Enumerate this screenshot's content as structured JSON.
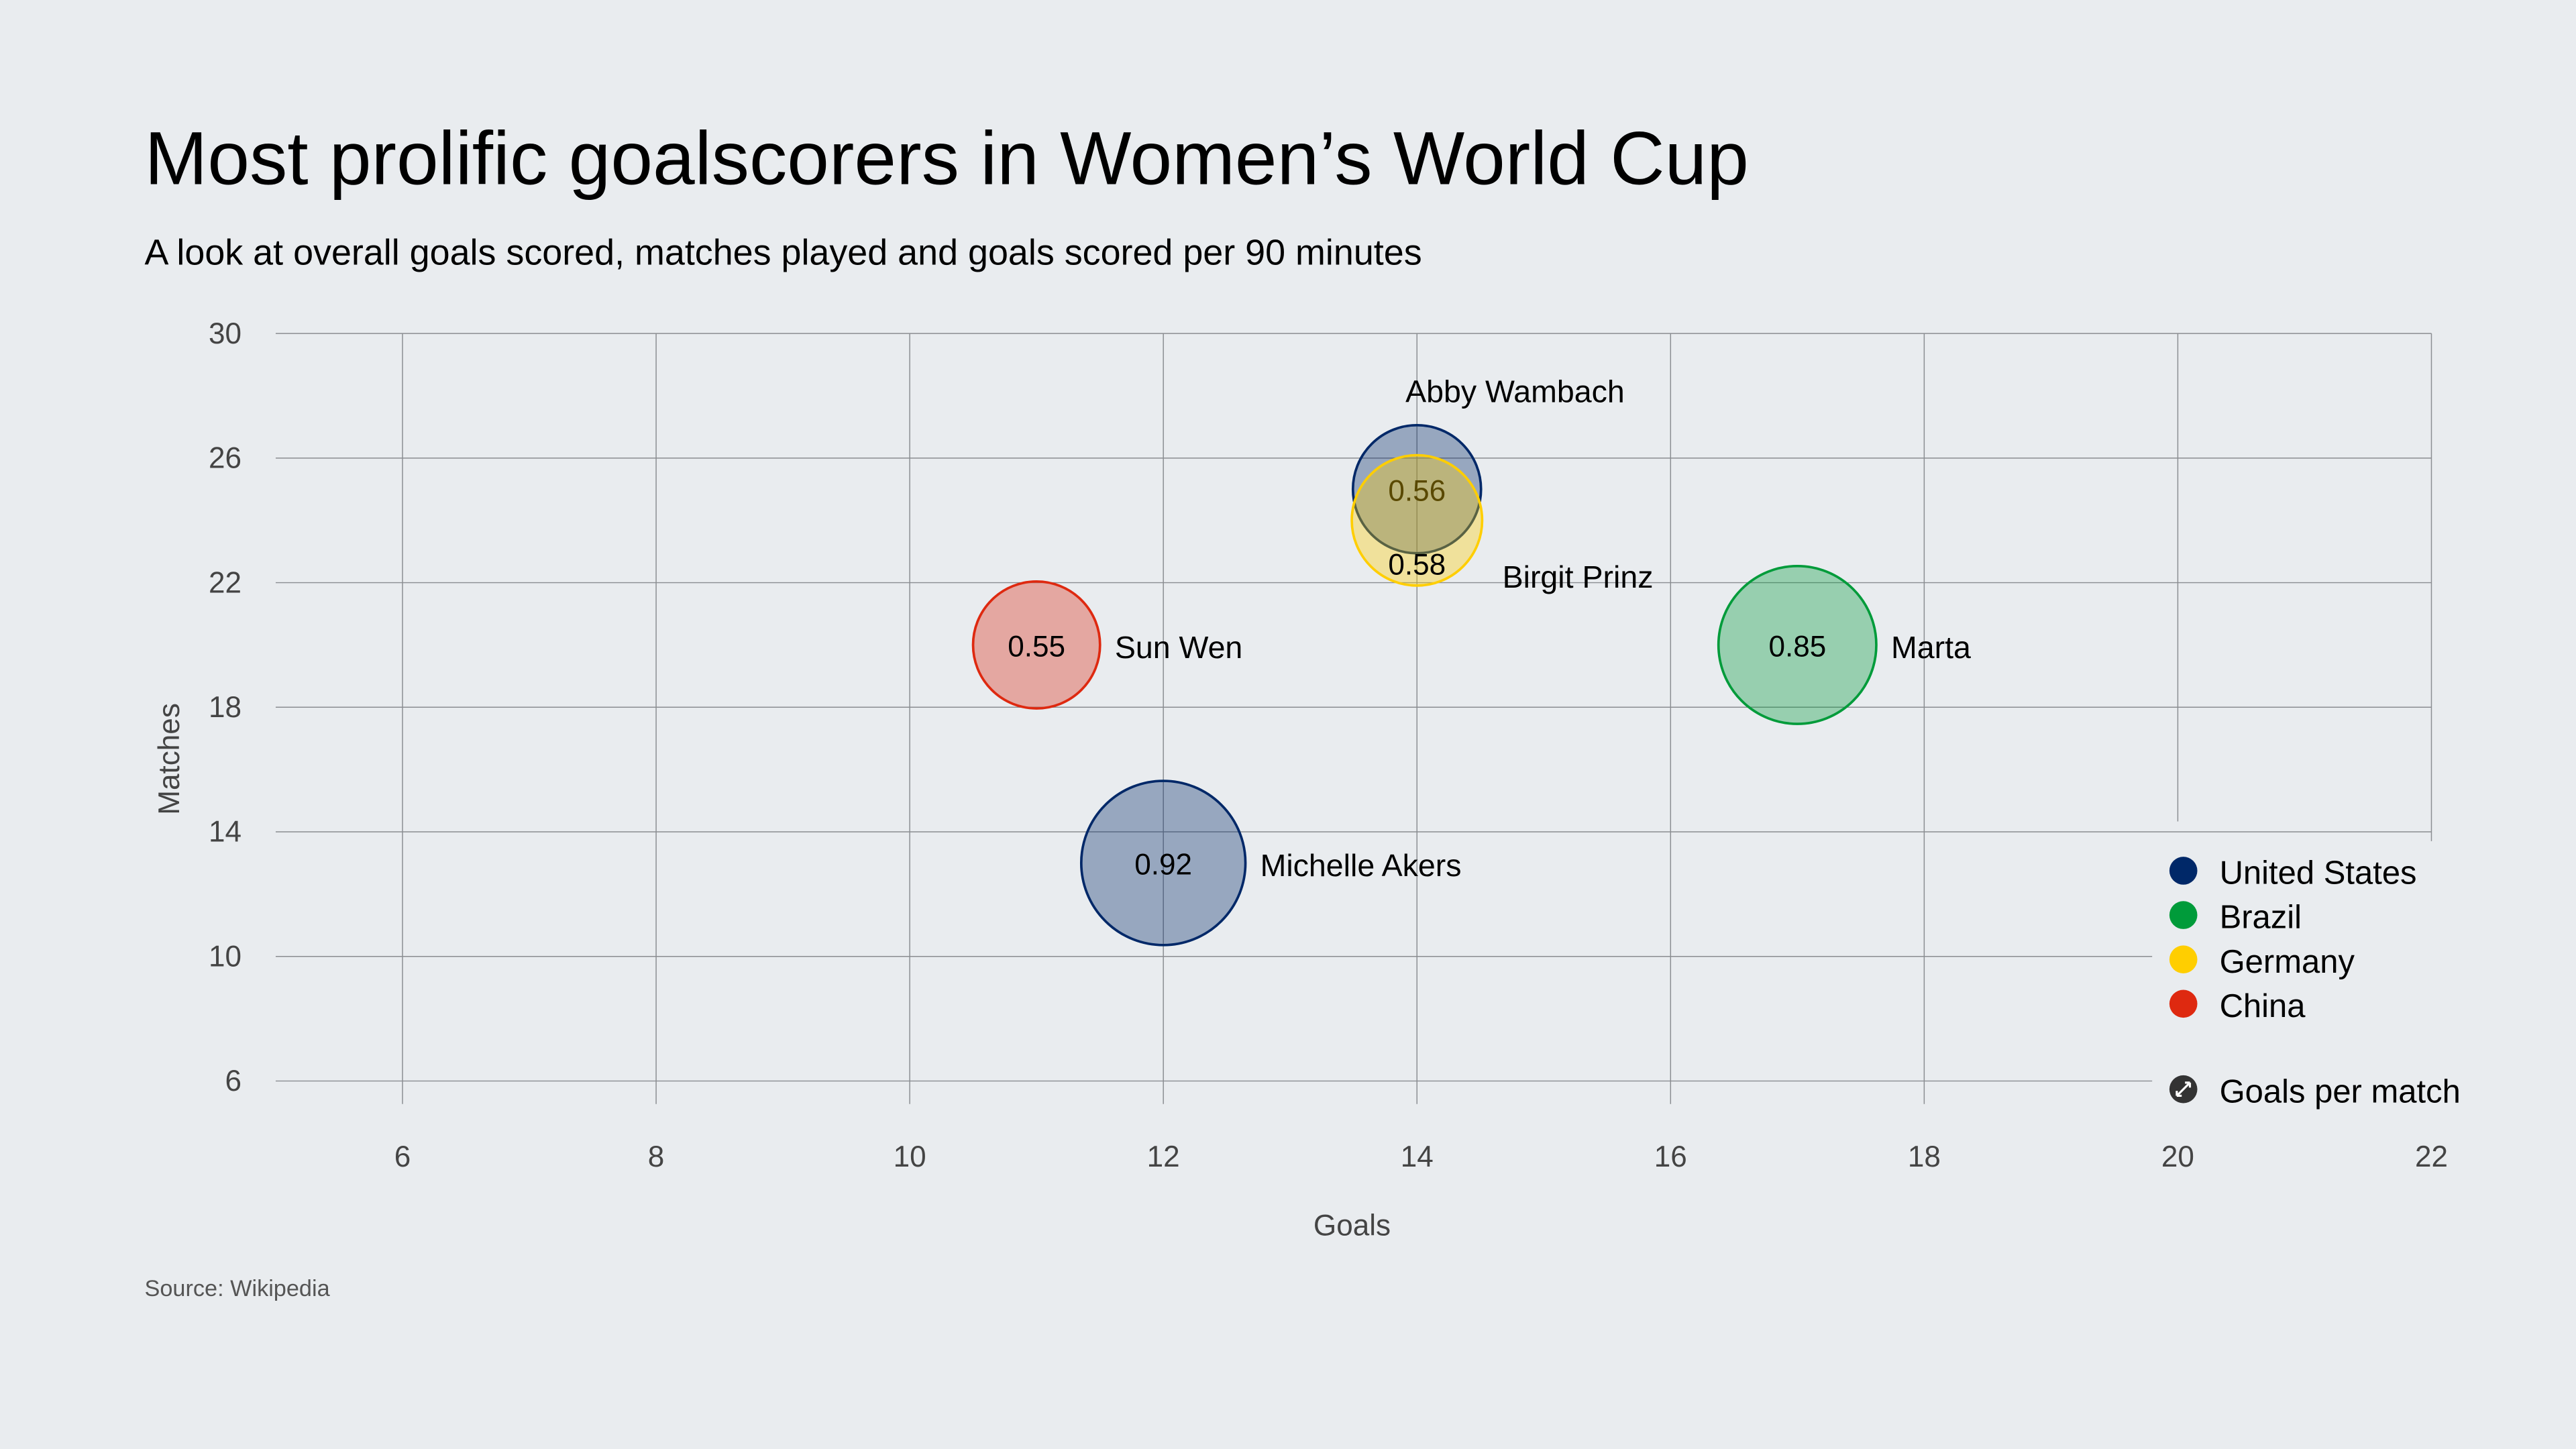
{
  "title": "Most prolific goalscorers in Women’s World Cup",
  "subtitle": "A look at overall goals scored, matches played and goals scored per 90 minutes",
  "source": "Source: Wikipedia",
  "chart_data": {
    "type": "scatter",
    "variant": "bubble",
    "xlabel": "Goals",
    "ylabel": "Matches",
    "xlim": [
      5,
      22
    ],
    "ylim": [
      6,
      30
    ],
    "xticks": [
      6,
      8,
      10,
      12,
      14,
      16,
      18,
      20,
      22
    ],
    "yticks": [
      6,
      10,
      14,
      18,
      22,
      26,
      30
    ],
    "grid": true,
    "legend_position": "bottom-right",
    "size_encoding": "Goals per match",
    "legend": [
      {
        "name": "United States",
        "color": "#002868"
      },
      {
        "name": "Brazil",
        "color": "#009b3a"
      },
      {
        "name": "Germany",
        "color": "#ffce00"
      },
      {
        "name": "China",
        "color": "#de2910"
      }
    ],
    "size_legend_label": "Goals per match",
    "points": [
      {
        "name": "Michelle Akers",
        "country": "United States",
        "goals": 12,
        "matches": 13,
        "goals_per_match": 0.92,
        "value_label": "0.92"
      },
      {
        "name": "Sun Wen",
        "country": "China",
        "goals": 11,
        "matches": 20,
        "goals_per_match": 0.55,
        "value_label": "0.55"
      },
      {
        "name": "Marta",
        "country": "Brazil",
        "goals": 17,
        "matches": 20,
        "goals_per_match": 0.85,
        "value_label": "0.85"
      },
      {
        "name": "Abby Wambach",
        "country": "United States",
        "goals": 14,
        "matches": 25,
        "goals_per_match": 0.56,
        "value_label": "0.56"
      },
      {
        "name": "Birgit Prinz",
        "country": "Germany",
        "goals": 14,
        "matches": 24,
        "goals_per_match": 0.58,
        "value_label": "0.58"
      }
    ]
  }
}
